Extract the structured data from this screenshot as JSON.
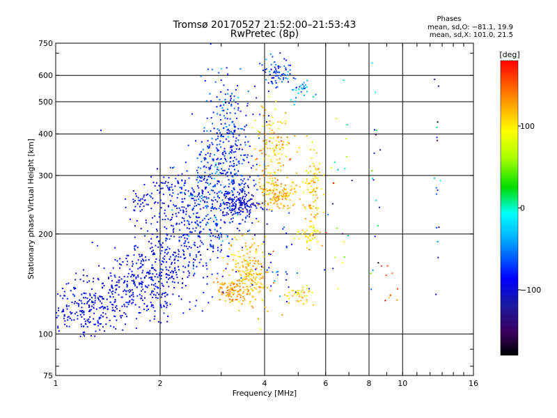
{
  "chart_data": {
    "type": "scatter",
    "title": "Tromsø 20170527 21:52:00–21:53:43",
    "subtitle": "RwPretec (8p)",
    "stats": {
      "heading": "Phases",
      "line_o": "mean, sd,O: −81.1, 19.9",
      "line_x": "mean, sd,X: 101.0, 21.5"
    },
    "xlabel": "Frequency [MHz]",
    "ylabel": "Stationary phase Virtual Height [km]",
    "x_scale": "log",
    "y_scale": "log",
    "xlim": [
      1,
      16
    ],
    "ylim": [
      75,
      750
    ],
    "x_ticks": [
      {
        "value": 1,
        "label": "1"
      },
      {
        "value": 2,
        "label": "2"
      },
      {
        "value": 4,
        "label": "4"
      },
      {
        "value": 6,
        "label": "6"
      },
      {
        "value": 8,
        "label": "8"
      },
      {
        "value": 10,
        "label": "10"
      },
      {
        "value": 16,
        "label": "16"
      }
    ],
    "x_gridlines": [
      2,
      4,
      6,
      8,
      10
    ],
    "y_ticks": [
      {
        "value": 75,
        "label": "75"
      },
      {
        "value": 100,
        "label": "100"
      },
      {
        "value": 200,
        "label": "200"
      },
      {
        "value": 300,
        "label": "300"
      },
      {
        "value": 400,
        "label": "400"
      },
      {
        "value": 500,
        "label": "500"
      },
      {
        "value": 600,
        "label": "600"
      },
      {
        "value": 750,
        "label": "750"
      }
    ],
    "y_gridlines": [
      100,
      200,
      300,
      400,
      500,
      600
    ],
    "grid": true,
    "colorbar": {
      "label": "[deg]",
      "range": [
        -180,
        180
      ],
      "ticks": [
        {
          "value": 100,
          "label": "100"
        },
        {
          "value": 0,
          "label": "0"
        },
        {
          "value": -100,
          "label": "−100"
        }
      ],
      "colormap": "rainbow",
      "placement": "right"
    },
    "point_groups": [
      {
        "x": 1.22,
        "y": 118,
        "x_spread": 0.17,
        "y_spread": 0.08,
        "phase": -95,
        "phase_spread": 10,
        "count": 200
      },
      {
        "x": 1.55,
        "y": 133,
        "x_spread": 0.15,
        "y_spread": 0.09,
        "phase": -93,
        "phase_spread": 10,
        "count": 200
      },
      {
        "x": 2.0,
        "y": 155,
        "x_spread": 0.15,
        "y_spread": 0.14,
        "phase": -90,
        "phase_spread": 10,
        "count": 280
      },
      {
        "x": 2.3,
        "y": 220,
        "x_spread": 0.12,
        "y_spread": 0.16,
        "phase": -85,
        "phase_spread": 12,
        "count": 200
      },
      {
        "x": 2.75,
        "y": 250,
        "x_spread": 0.1,
        "y_spread": 0.2,
        "phase": -70,
        "phase_spread": 20,
        "count": 240
      },
      {
        "x": 3.2,
        "y": 310,
        "x_spread": 0.1,
        "y_spread": 0.28,
        "phase": -82,
        "phase_spread": 14,
        "count": 260
      },
      {
        "x": 3.4,
        "y": 245,
        "x_spread": 0.06,
        "y_spread": 0.05,
        "phase": -100,
        "phase_spread": 10,
        "count": 140
      },
      {
        "x": 3.1,
        "y": 420,
        "x_spread": 0.08,
        "y_spread": 0.2,
        "phase": -75,
        "phase_spread": 18,
        "count": 120
      },
      {
        "x": 1.75,
        "y": 250,
        "x_spread": 0.05,
        "y_spread": 0.03,
        "phase": -92,
        "phase_spread": 8,
        "count": 30
      },
      {
        "x": 2.05,
        "y": 280,
        "x_spread": 0.05,
        "y_spread": 0.05,
        "phase": -90,
        "phase_spread": 8,
        "count": 30
      },
      {
        "x": 3.6,
        "y": 150,
        "x_spread": 0.07,
        "y_spread": 0.12,
        "phase": 118,
        "phase_spread": 12,
        "count": 220
      },
      {
        "x": 3.2,
        "y": 135,
        "x_spread": 0.05,
        "y_spread": 0.04,
        "phase": 130,
        "phase_spread": 10,
        "count": 80
      },
      {
        "x": 4.4,
        "y": 265,
        "x_spread": 0.06,
        "y_spread": 0.07,
        "phase": 122,
        "phase_spread": 12,
        "count": 160
      },
      {
        "x": 4.2,
        "y": 370,
        "x_spread": 0.06,
        "y_spread": 0.13,
        "phase": 115,
        "phase_spread": 18,
        "count": 110
      },
      {
        "x": 5.5,
        "y": 270,
        "x_spread": 0.03,
        "y_spread": 0.15,
        "phase": 108,
        "phase_spread": 15,
        "count": 100
      },
      {
        "x": 4.3,
        "y": 610,
        "x_spread": 0.05,
        "y_spread": 0.05,
        "phase": -75,
        "phase_spread": 20,
        "count": 70
      },
      {
        "x": 5.1,
        "y": 545,
        "x_spread": 0.04,
        "y_spread": 0.05,
        "phase": -40,
        "phase_spread": 25,
        "count": 35
      },
      {
        "x": 5.3,
        "y": 200,
        "x_spread": 0.04,
        "y_spread": 0.04,
        "phase": 95,
        "phase_spread": 10,
        "count": 35
      },
      {
        "x": 5.0,
        "y": 132,
        "x_spread": 0.06,
        "y_spread": 0.03,
        "phase": 105,
        "phase_spread": 15,
        "count": 40
      },
      {
        "x": 4.5,
        "y": 160,
        "x_spread": 0.08,
        "y_spread": 0.15,
        "phase": -80,
        "phase_spread": 20,
        "count": 30
      },
      {
        "x": 6.6,
        "y": 250,
        "x_spread": 0.05,
        "y_spread": 0.3,
        "phase": 60,
        "phase_spread": 90,
        "count": 25
      },
      {
        "x": 8.3,
        "y": 250,
        "x_spread": 0.02,
        "y_spread": 0.5,
        "phase": -60,
        "phase_spread": 80,
        "count": 18
      },
      {
        "x": 12.6,
        "y": 300,
        "x_spread": 0.01,
        "y_spread": 0.55,
        "phase": -80,
        "phase_spread": 70,
        "count": 18
      },
      {
        "x": 9.0,
        "y": 140,
        "x_spread": 0.05,
        "y_spread": 0.08,
        "phase": 150,
        "phase_spread": 30,
        "count": 10
      },
      {
        "x": 1.35,
        "y": 410,
        "x_spread": 0.0,
        "y_spread": 0.0,
        "phase": -100,
        "phase_spread": 0,
        "count": 1
      }
    ]
  }
}
